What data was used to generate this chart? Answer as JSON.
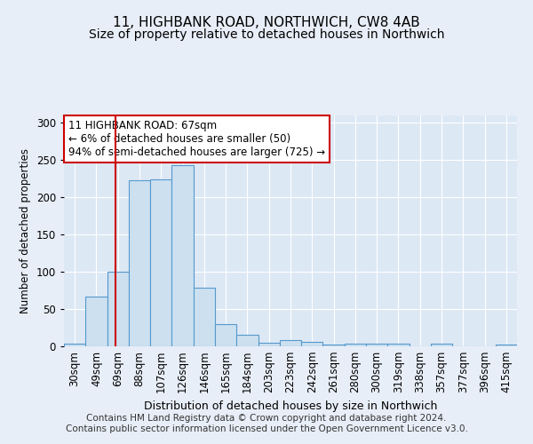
{
  "title": "11, HIGHBANK ROAD, NORTHWICH, CW8 4AB",
  "subtitle": "Size of property relative to detached houses in Northwich",
  "xlabel": "Distribution of detached houses by size in Northwich",
  "ylabel": "Number of detached properties",
  "bar_color": "#cce0f0",
  "bar_edge_color": "#5599cc",
  "background_color": "#dde8f5",
  "fig_background_color": "#e8eef8",
  "grid_color": "#ffffff",
  "categories": [
    "30sqm",
    "49sqm",
    "69sqm",
    "88sqm",
    "107sqm",
    "126sqm",
    "146sqm",
    "165sqm",
    "184sqm",
    "203sqm",
    "223sqm",
    "242sqm",
    "261sqm",
    "280sqm",
    "300sqm",
    "319sqm",
    "338sqm",
    "357sqm",
    "377sqm",
    "396sqm",
    "415sqm"
  ],
  "values": [
    3,
    67,
    100,
    223,
    224,
    243,
    79,
    30,
    15,
    5,
    8,
    6,
    2,
    3,
    3,
    3,
    0,
    3,
    0,
    0,
    2
  ],
  "ylim": [
    0,
    310
  ],
  "yticks": [
    0,
    50,
    100,
    150,
    200,
    250,
    300
  ],
  "property_line_color": "#cc0000",
  "annotation_text": "11 HIGHBANK ROAD: 67sqm\n← 6% of detached houses are smaller (50)\n94% of semi-detached houses are larger (725) →",
  "annotation_box_color": "#ffffff",
  "annotation_box_edge_color": "#cc0000",
  "annotation_fontsize": 8.5,
  "title_fontsize": 11,
  "subtitle_fontsize": 10,
  "footer_text": "Contains HM Land Registry data © Crown copyright and database right 2024.\nContains public sector information licensed under the Open Government Licence v3.0.",
  "footer_fontsize": 7.5
}
